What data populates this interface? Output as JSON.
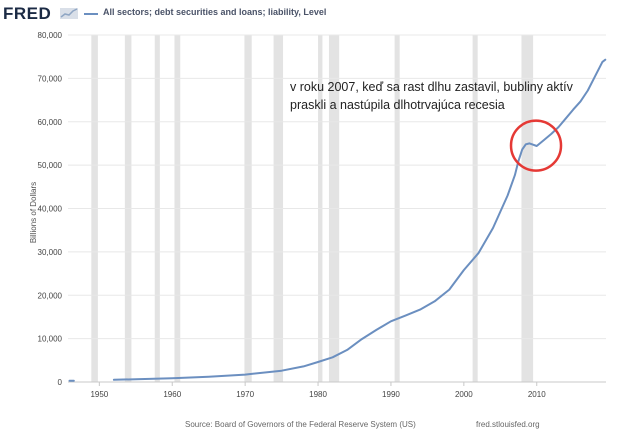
{
  "header": {
    "logo": "FRED",
    "series_title": "All sectors; debt securities and loans; liability, Level",
    "series_color": "#6b8fc0"
  },
  "footer": {
    "source": "Source: Board of Governors of the Federal Reserve System (US)",
    "site": "fred.stlouisfed.org"
  },
  "annotation": {
    "text": "v roku 2007, keď sa rast dlhu zastavil, bubliny aktív praskli a nastúpila dlhotrvajúca recesia",
    "circle_color": "#e53935",
    "circle_center": {
      "year": 2009.9,
      "value": 54500
    }
  },
  "chart_data": {
    "type": "line",
    "title": "",
    "xlabel": "",
    "ylabel": "Billions of Dollars",
    "xlim": [
      1945.7,
      2019.5
    ],
    "ylim": [
      0,
      80000
    ],
    "xticks": [
      1950,
      1960,
      1970,
      1980,
      1990,
      2000,
      2010
    ],
    "yticks": [
      0,
      10000,
      20000,
      30000,
      40000,
      50000,
      60000,
      70000,
      80000
    ],
    "ytick_labels": [
      "0",
      "10,000",
      "20,000",
      "30,000",
      "40,000",
      "50,000",
      "60,000",
      "70,000",
      "80,000"
    ],
    "grid": "horizontal",
    "recession_color": "#e3e3e3",
    "recessions": [
      [
        1948.9,
        1949.8
      ],
      [
        1953.5,
        1954.4
      ],
      [
        1957.6,
        1958.3
      ],
      [
        1960.3,
        1961.1
      ],
      [
        1969.9,
        1970.9
      ],
      [
        1973.9,
        1975.2
      ],
      [
        1980.0,
        1980.6
      ],
      [
        1981.5,
        1982.9
      ],
      [
        1990.5,
        1991.2
      ],
      [
        2001.2,
        2001.9
      ],
      [
        2007.9,
        2009.5
      ]
    ],
    "series": [
      {
        "color": "#6b8fc0",
        "segments": [
          [
            [
              1945.9,
              300
            ],
            [
              1946.5,
              300
            ]
          ],
          [
            [
              1952.0,
              500
            ],
            [
              1955,
              650
            ],
            [
              1960,
              850
            ],
            [
              1965,
              1200
            ],
            [
              1970,
              1700
            ],
            [
              1975,
              2600
            ],
            [
              1978,
              3600
            ],
            [
              1980,
              4600
            ],
            [
              1982,
              5700
            ],
            [
              1984,
              7400
            ],
            [
              1986,
              9900
            ],
            [
              1988,
              12000
            ],
            [
              1990,
              14000
            ],
            [
              1992,
              15300
            ],
            [
              1994,
              16700
            ],
            [
              1996,
              18600
            ],
            [
              1998,
              21300
            ],
            [
              2000,
              25800
            ],
            [
              2002,
              29700
            ],
            [
              2004,
              35500
            ],
            [
              2006,
              43000
            ],
            [
              2007,
              47700
            ],
            [
              2007.5,
              51000
            ],
            [
              2008,
              53600
            ],
            [
              2008.5,
              54800
            ],
            [
              2009,
              55000
            ],
            [
              2009.5,
              54700
            ],
            [
              2010,
              54400
            ],
            [
              2011,
              55800
            ],
            [
              2012,
              57200
            ],
            [
              2013,
              58800
            ],
            [
              2014,
              60800
            ],
            [
              2015,
              62800
            ],
            [
              2016,
              64700
            ],
            [
              2017,
              67200
            ],
            [
              2018,
              70500
            ],
            [
              2019,
              73800
            ],
            [
              2019.4,
              74300
            ]
          ]
        ]
      }
    ]
  }
}
